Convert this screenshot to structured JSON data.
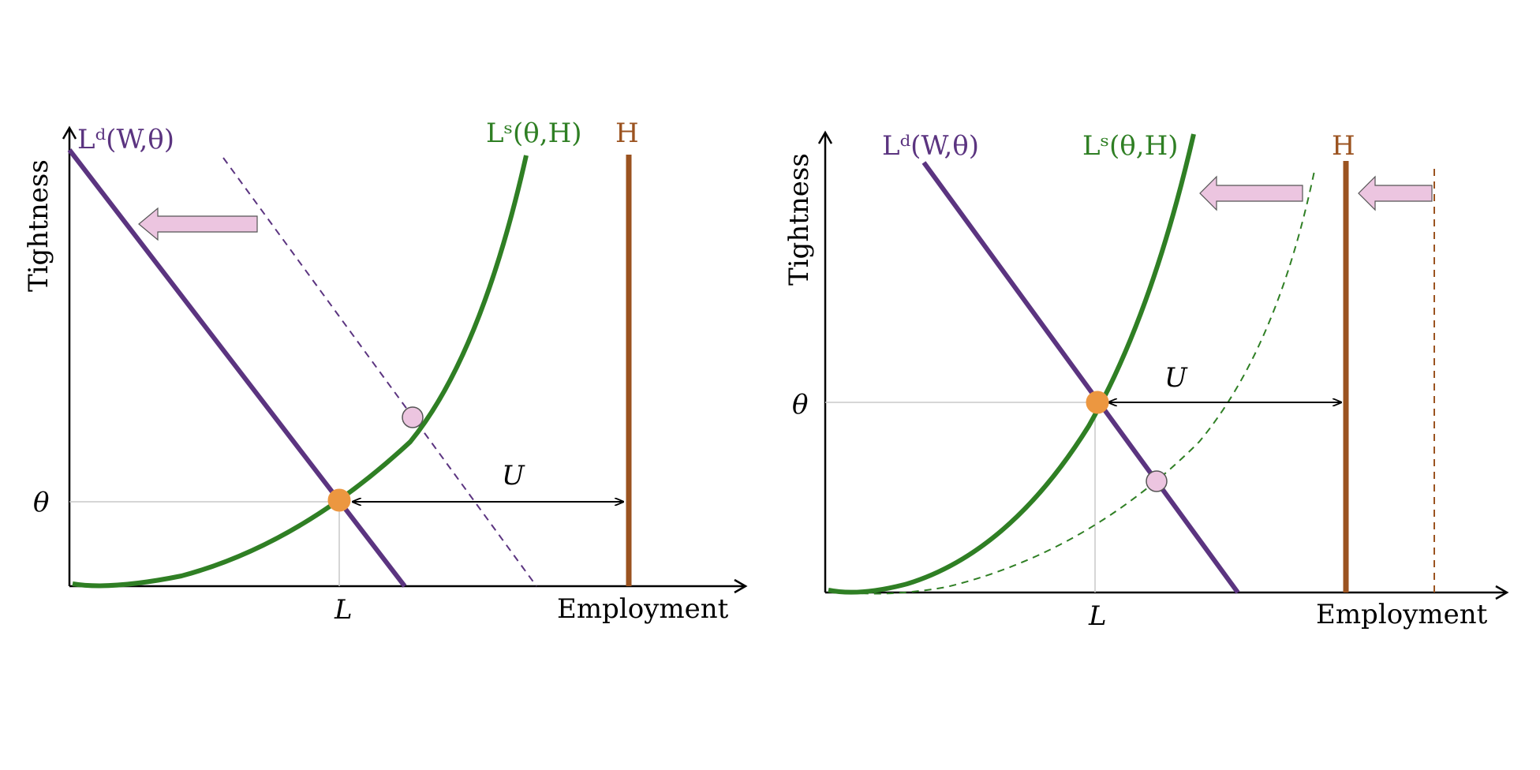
{
  "colors": {
    "demand": "#5b3480",
    "supply": "#2f7f24",
    "labor_force": "#9b5320",
    "equilibrium": "#ec9740",
    "new_equilibrium": "#ecc5e0",
    "shift_arrow": "#ecc5e0",
    "guide": "#c8c8c8"
  },
  "panels": [
    {
      "y_axis_label": "Tightness",
      "x_axis_label": "Employment",
      "theta_label": "θ",
      "l_label": "L",
      "u_label": "U",
      "demand_label": "Lᵈ(W,θ)",
      "supply_label": "Lˢ(θ,H)",
      "h_label": "H",
      "shifted_curve": "demand"
    },
    {
      "y_axis_label": "Tightness",
      "x_axis_label": "Employment",
      "theta_label": "θ",
      "l_label": "L",
      "u_label": "U",
      "demand_label": "Lᵈ(W,θ)",
      "supply_label": "Lˢ(θ,H)",
      "h_label": "H",
      "shifted_curve": "supply and H"
    }
  ]
}
